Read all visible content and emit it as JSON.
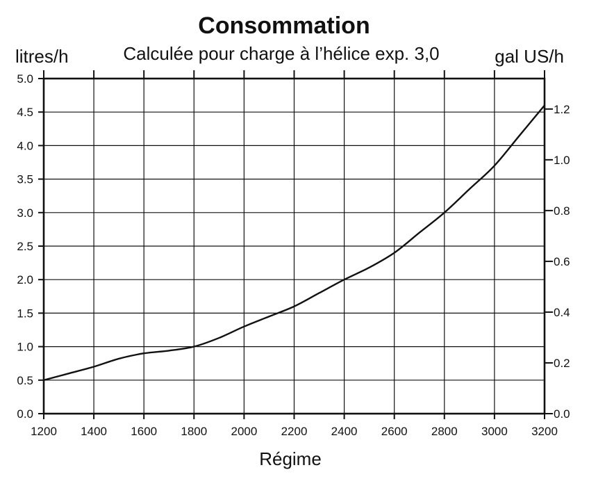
{
  "chart_data": {
    "type": "line",
    "title": "Consommation",
    "subtitle": "Calculée pour charge à l’hélice exp. 3,0",
    "xlabel": "Régime",
    "ylabel_left": "litres/h",
    "ylabel_right": "gal US/h",
    "xlim": [
      1200,
      3200
    ],
    "ylim_left": [
      0,
      5
    ],
    "ylim_right": [
      0,
      1.32
    ],
    "grid": true,
    "x_ticks": [
      "1200",
      "1400",
      "1600",
      "1800",
      "2000",
      "2200",
      "2400",
      "2600",
      "2800",
      "3000",
      "3200"
    ],
    "y_left_ticks": [
      "0.0",
      "0.5",
      "1.0",
      "1.5",
      "2.0",
      "2.5",
      "3.0",
      "3.5",
      "4.0",
      "4.5",
      "5.0"
    ],
    "y_right_ticks": [
      "0.0",
      "0.2",
      "0.4",
      "0.6",
      "0.8",
      "1.0",
      "1.2"
    ],
    "series": [
      {
        "x": [
          1200,
          1300,
          1400,
          1500,
          1600,
          1700,
          1800,
          1900,
          2000,
          2100,
          2200,
          2300,
          2400,
          2500,
          2600,
          2700,
          2800,
          2900,
          3000,
          3100,
          3200
        ],
        "y": [
          0.5,
          0.6,
          0.7,
          0.82,
          0.9,
          0.94,
          1.0,
          1.13,
          1.3,
          1.45,
          1.6,
          1.8,
          2.0,
          2.18,
          2.4,
          2.7,
          3.0,
          3.35,
          3.7,
          4.15,
          4.6
        ]
      }
    ]
  }
}
